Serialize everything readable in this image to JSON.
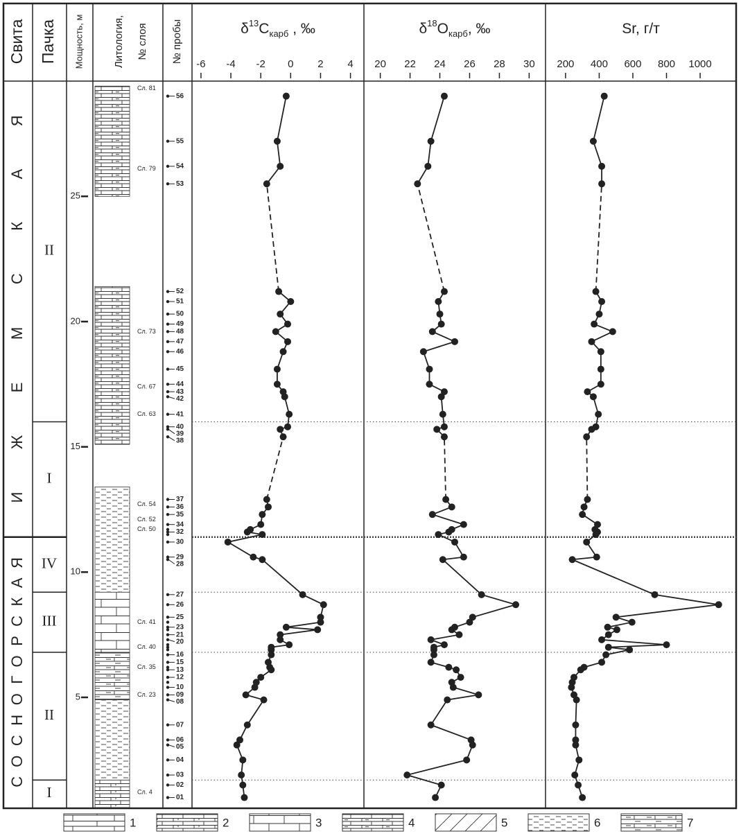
{
  "header": {
    "formation": "Свита",
    "member": "Пачка",
    "lithology": [
      "Литология,",
      "№ слоя"
    ],
    "samples": "№ пробы"
  },
  "depth_axis": {
    "label": "Мощность, м",
    "ylim": [
      0.6,
      29.6
    ],
    "yticks": [
      5,
      10,
      15,
      20,
      25
    ]
  },
  "formations": [
    {
      "name": "СОСНОГОРСКАЯ",
      "top": 11.4
    },
    {
      "name": "ИЖЕМСКАЯ",
      "top": 29.6
    }
  ],
  "members": [
    {
      "label": "I",
      "top": 1.7
    },
    {
      "label": "II",
      "top": 6.8
    },
    {
      "label": "III",
      "top": 9.2
    },
    {
      "label": "IV",
      "top": 11.4
    },
    {
      "label": "I",
      "top": 16
    },
    {
      "label": "II",
      "top": 29.6
    }
  ],
  "lithology": [
    {
      "base": 0.6,
      "top": 1.7,
      "type": 2
    },
    {
      "base": 1.7,
      "top": 4.9,
      "type": 6
    },
    {
      "base": 4.9,
      "top": 6.8,
      "type": 7
    },
    {
      "base": 6.8,
      "top": 9.2,
      "type": 3
    },
    {
      "base": 9.2,
      "top": 13.4,
      "type": 6
    },
    {
      "base": 15.1,
      "top": 21.4,
      "type": 4
    },
    {
      "base": 25,
      "top": 29.4,
      "type": 4
    }
  ],
  "layers": [
    {
      "label": "Сл. 4",
      "depth": 1.2
    },
    {
      "label": "Сл. 23",
      "depth": 5.1
    },
    {
      "label": "Сл. 35",
      "depth": 6.2
    },
    {
      "label": "Сл. 40",
      "depth": 7
    },
    {
      "label": "Сл. 41",
      "depth": 8
    },
    {
      "label": "Сл. 50",
      "depth": 11.7
    },
    {
      "label": "Сл. 52",
      "depth": 12.1
    },
    {
      "label": "Сл. 54",
      "depth": 12.7
    },
    {
      "label": "Сл. 63",
      "depth": 16.3
    },
    {
      "label": "Сл. 67",
      "depth": 17.4
    },
    {
      "label": "Сл. 73",
      "depth": 19.6
    },
    {
      "label": "Сл. 79",
      "depth": 26.1
    },
    {
      "label": "Сл. 81",
      "depth": 29.3
    }
  ],
  "samples": {
    "labels": [
      "01",
      "02",
      "03",
      "04",
      "05",
      "06",
      "07",
      "08",
      "09",
      "10",
      null,
      "12",
      "13",
      null,
      "15",
      "16",
      null,
      null,
      null,
      "20",
      "21",
      null,
      "23",
      null,
      "25",
      "26",
      "27",
      "28",
      "29",
      "30",
      null,
      "32",
      null,
      "34",
      "35",
      "36",
      "37",
      "38",
      "39",
      "40",
      "41",
      "42",
      "43",
      "44",
      "45",
      "46",
      "47",
      "48",
      "49",
      "50",
      "51",
      "52",
      "53",
      "54",
      "55",
      "56"
    ],
    "depth": [
      1.0,
      1.5,
      1.9,
      2.5,
      3.1,
      3.3,
      3.9,
      4.9,
      5.1,
      5.4,
      5.6,
      5.8,
      6.1,
      6.2,
      6.4,
      6.7,
      6.9,
      7.0,
      7.1,
      7.3,
      7.5,
      7.7,
      7.8,
      8.0,
      8.2,
      8.7,
      9.1,
      10.5,
      10.6,
      11.2,
      11.5,
      11.6,
      11.7,
      11.9,
      12.3,
      12.6,
      12.9,
      15.4,
      15.7,
      15.8,
      16.3,
      17.0,
      17.2,
      17.5,
      18.1,
      18.8,
      19.2,
      19.6,
      19.9,
      20.3,
      20.8,
      21.2,
      25.5,
      26.2,
      27.2,
      29.0
    ]
  },
  "chart_data": [
    {
      "type": "line",
      "color": "#222222",
      "title": [
        {
          "text": "δ"
        },
        {
          "text": "13",
          "shift": "super"
        },
        {
          "text": "C"
        },
        {
          "text": "карб",
          "shift": "sub"
        },
        {
          "text": " , ‰"
        }
      ],
      "xlim": [
        -6.6,
        4.9
      ],
      "xticks": [
        -6,
        -4,
        -2,
        0,
        2,
        4
      ],
      "values": [
        -3.1,
        -3.2,
        -3.3,
        -3.2,
        -3.6,
        -3.4,
        -2.9,
        -1.8,
        -3.0,
        -2.4,
        -2.3,
        -2.0,
        -1.3,
        -1.4,
        -1.5,
        -1.3,
        -1.3,
        -1.3,
        -0.1,
        -0.7,
        -0.7,
        1.8,
        -0.3,
        2.0,
        2.0,
        2.2,
        0.8,
        -1.9,
        -2.5,
        -4.2,
        -1.9,
        -2.9,
        -2.7,
        -2.0,
        -1.9,
        -1.5,
        -1.6,
        -0.5,
        -0.7,
        -0.2,
        -0.1,
        -0.4,
        -0.5,
        -0.9,
        -0.9,
        -0.5,
        -0.2,
        -1.0,
        -0.2,
        -0.7,
        0,
        -0.8,
        -1.6,
        -0.7,
        -0.9,
        -0.3
      ]
    },
    {
      "type": "line",
      "color": "#222222",
      "title": [
        {
          "text": "δ"
        },
        {
          "text": "18",
          "shift": "super"
        },
        {
          "text": "O"
        },
        {
          "text": "карб",
          "shift": "sub"
        },
        {
          "text": ", ‰"
        }
      ],
      "xlim": [
        18.9,
        31.1
      ],
      "xticks": [
        20,
        22,
        24,
        26,
        28,
        30
      ],
      "values": [
        23.7,
        24.1,
        21.8,
        25.8,
        26.2,
        26.1,
        23.4,
        24.5,
        26.6,
        24.9,
        24.8,
        25.4,
        25.1,
        24.6,
        23.4,
        23.6,
        23.6,
        23.6,
        24.3,
        23.4,
        25.3,
        24.8,
        25.0,
        26.0,
        26.2,
        29.1,
        26.8,
        24.2,
        25.6,
        25.0,
        23.9,
        24.6,
        24.8,
        25.6,
        23.5,
        24.8,
        24.4,
        24.3,
        23.8,
        24.3,
        24.2,
        24.1,
        24.3,
        23.3,
        23.3,
        22.9,
        25.0,
        23.5,
        24.1,
        24.0,
        23.9,
        24.3,
        22.5,
        23.2,
        23.4,
        24.3
      ]
    },
    {
      "type": "line",
      "color": "#222222",
      "title": [
        {
          "text": "Sr, г/т"
        }
      ],
      "xlim": [
        81,
        1214
      ],
      "xticks": [
        200,
        400,
        600,
        800,
        1000
      ],
      "values": [
        300,
        275,
        255,
        280,
        260,
        260,
        260,
        265,
        250,
        235,
        240,
        250,
        290,
        310,
        415,
        440,
        580,
        455,
        800,
        415,
        455,
        505,
        450,
        595,
        500,
        1110,
        730,
        240,
        385,
        325,
        380,
        390,
        375,
        390,
        300,
        310,
        330,
        325,
        355,
        380,
        395,
        365,
        330,
        410,
        410,
        410,
        355,
        480,
        370,
        400,
        415,
        380,
        415,
        415,
        365,
        430
      ]
    }
  ],
  "legend": [
    "1",
    "2",
    "3",
    "4",
    "5",
    "6",
    "7"
  ]
}
